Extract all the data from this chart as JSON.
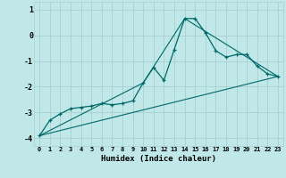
{
  "xlabel": "Humidex (Indice chaleur)",
  "bg_color": "#c0e8e8",
  "grid_color": "#a8d0d0",
  "line_color": "#006868",
  "xlim": [
    -0.5,
    23.5
  ],
  "ylim": [
    -4.3,
    1.3
  ],
  "yticks": [
    1,
    0,
    -1,
    -2,
    -3,
    -4
  ],
  "xticks": [
    0,
    1,
    2,
    3,
    4,
    5,
    6,
    7,
    8,
    9,
    10,
    11,
    12,
    13,
    14,
    15,
    16,
    17,
    18,
    19,
    20,
    21,
    22,
    23
  ],
  "series": [
    [
      0,
      -3.9
    ],
    [
      1,
      -3.3
    ],
    [
      2,
      -3.05
    ],
    [
      3,
      -2.85
    ],
    [
      4,
      -2.8
    ],
    [
      5,
      -2.75
    ],
    [
      6,
      -2.65
    ],
    [
      7,
      -2.7
    ],
    [
      8,
      -2.65
    ],
    [
      9,
      -2.55
    ],
    [
      10,
      -1.85
    ],
    [
      11,
      -1.25
    ],
    [
      12,
      -1.75
    ],
    [
      13,
      -0.55
    ],
    [
      14,
      0.65
    ],
    [
      15,
      0.65
    ],
    [
      16,
      0.1
    ],
    [
      17,
      -0.6
    ],
    [
      18,
      -0.85
    ],
    [
      19,
      -0.75
    ],
    [
      20,
      -0.75
    ],
    [
      21,
      -1.2
    ],
    [
      22,
      -1.5
    ],
    [
      23,
      -1.6
    ]
  ],
  "line2_x": [
    0,
    10,
    14,
    23
  ],
  "line2_y": [
    -3.9,
    -1.85,
    0.65,
    -1.6
  ],
  "line3_x": [
    0,
    23
  ],
  "line3_y": [
    -3.9,
    -1.6
  ]
}
